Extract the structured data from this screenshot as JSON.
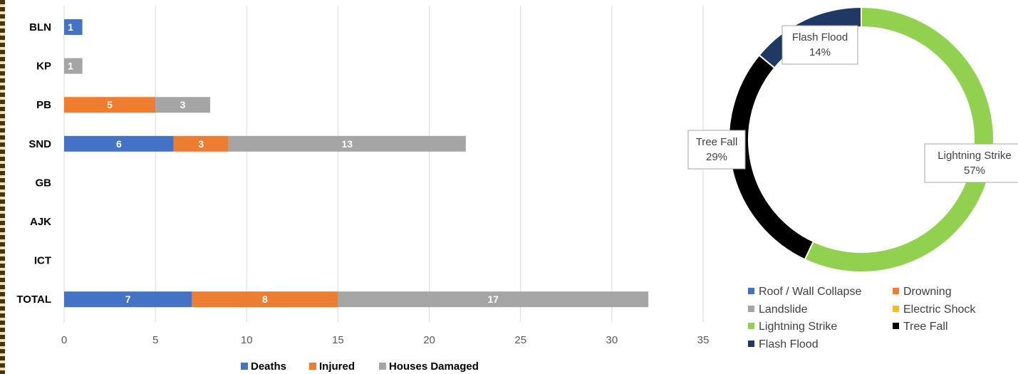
{
  "chart_data": [
    {
      "type": "bar",
      "orientation": "horizontal",
      "stacked": true,
      "categories": [
        "BLN",
        "KP",
        "PB",
        "SND",
        "GB",
        "AJK",
        "ICT",
        "TOTAL"
      ],
      "series": [
        {
          "name": "Deaths",
          "color": "#4472C4",
          "values": [
            1,
            0,
            0,
            6,
            0,
            0,
            0,
            7
          ]
        },
        {
          "name": "Injured",
          "color": "#ED7D31",
          "values": [
            0,
            0,
            5,
            3,
            0,
            0,
            0,
            8
          ]
        },
        {
          "name": "Houses Damaged",
          "color": "#A5A5A5",
          "values": [
            0,
            1,
            3,
            13,
            0,
            0,
            0,
            17
          ]
        }
      ],
      "xlim": [
        0,
        35
      ],
      "xticks": [
        "0",
        "5",
        "10",
        "15",
        "20",
        "25",
        "30",
        "35"
      ],
      "grid": true,
      "legend_position": "bottom"
    },
    {
      "type": "pie",
      "variant": "donut",
      "slices": [
        {
          "label": "Roof / Wall Collapse",
          "value": 0,
          "color": "#4472C4"
        },
        {
          "label": "Drowning",
          "value": 0,
          "color": "#ED7D31"
        },
        {
          "label": "Landslide",
          "value": 0,
          "color": "#A5A5A5"
        },
        {
          "label": "Electric Shock",
          "value": 0,
          "color": "#FFC000"
        },
        {
          "label": "Lightning Strike",
          "value": 57,
          "color": "#92D050",
          "display": "57%"
        },
        {
          "label": "Tree Fall",
          "value": 29,
          "color": "#000000",
          "display": "29%"
        },
        {
          "label": "Flash Flood",
          "value": 14,
          "color": "#1F3864",
          "display": "14%"
        }
      ],
      "legend_position": "bottom"
    }
  ]
}
